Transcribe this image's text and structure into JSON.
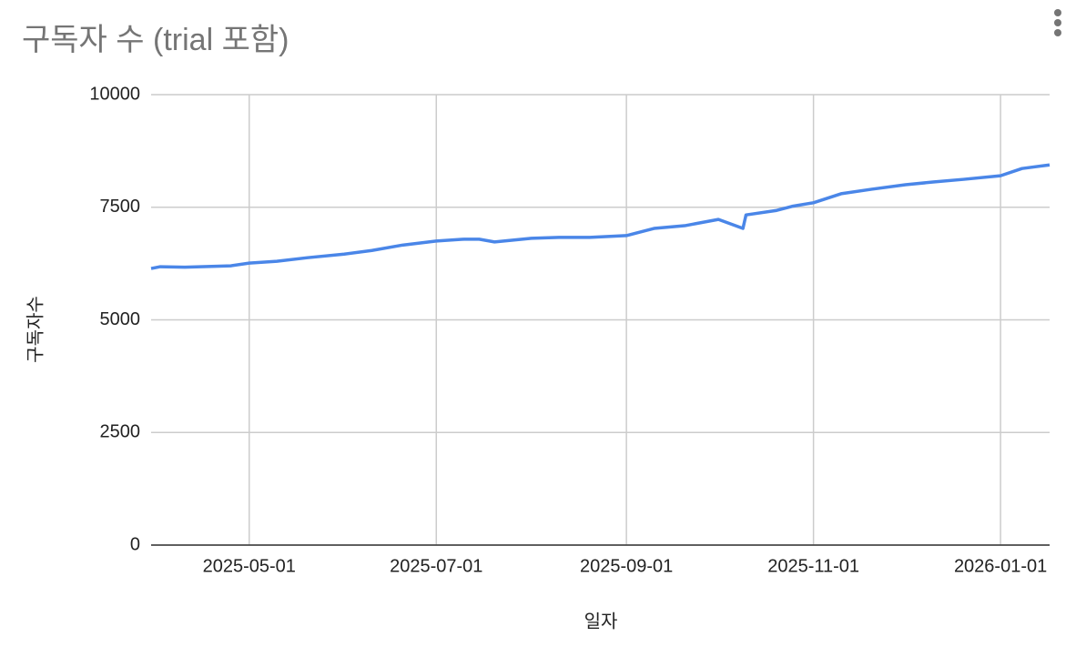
{
  "chart_data": {
    "type": "line",
    "title": "구독자 수 (trial 포함)",
    "x_label": "일자",
    "y_label": "구독자수",
    "x": [
      "2025-03-30",
      "2025-04-02",
      "2025-04-10",
      "2025-04-20",
      "2025-04-25",
      "2025-05-01",
      "2025-05-10",
      "2025-05-20",
      "2025-06-01",
      "2025-06-10",
      "2025-06-20",
      "2025-07-01",
      "2025-07-10",
      "2025-07-15",
      "2025-07-20",
      "2025-08-01",
      "2025-08-10",
      "2025-08-20",
      "2025-09-01",
      "2025-09-10",
      "2025-09-20",
      "2025-10-01",
      "2025-10-09",
      "2025-10-10",
      "2025-10-20",
      "2025-10-25",
      "2025-11-01",
      "2025-11-10",
      "2025-11-20",
      "2025-12-01",
      "2025-12-10",
      "2025-12-20",
      "2026-01-01",
      "2026-01-08",
      "2026-01-17"
    ],
    "series": [
      {
        "name": "구독자수",
        "color": "#4a86e8",
        "values": [
          6140,
          6180,
          6170,
          6190,
          6200,
          6260,
          6300,
          6380,
          6460,
          6540,
          6660,
          6750,
          6790,
          6790,
          6730,
          6810,
          6830,
          6830,
          6870,
          7030,
          7090,
          7230,
          7030,
          7330,
          7430,
          7520,
          7600,
          7800,
          7900,
          8000,
          8060,
          8120,
          8200,
          8360,
          8440
        ]
      }
    ],
    "xlim": [
      "2025-03-30",
      "2026-01-17"
    ],
    "xticks": [
      "2025-05-01",
      "2025-07-01",
      "2025-09-01",
      "2025-11-01",
      "2026-01-01"
    ],
    "ylim": [
      0,
      10000
    ],
    "yticks": [
      0,
      2500,
      5000,
      7500,
      10000
    ],
    "grid": true
  }
}
